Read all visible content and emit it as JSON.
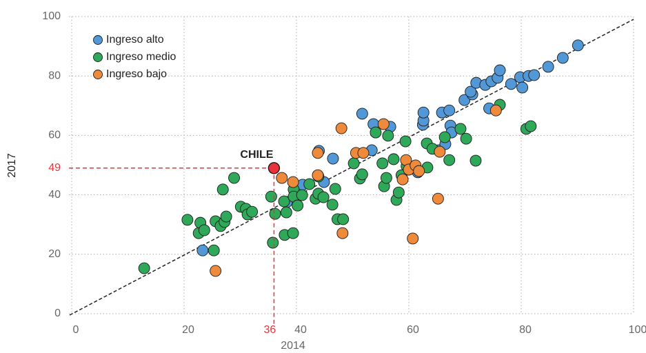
{
  "chart_data": {
    "type": "scatter",
    "xlabel": "2014",
    "ylabel": "2017",
    "xlim": [
      0,
      100
    ],
    "ylim": [
      0,
      100
    ],
    "xticks": [
      0,
      20,
      40,
      60,
      80,
      100
    ],
    "yticks": [
      0,
      20,
      40,
      60,
      80,
      100
    ],
    "grid": true,
    "legend": "upper left",
    "highlight": {
      "label": "CHILE",
      "x": 36,
      "y": 49,
      "color": "#e8333a"
    },
    "series": [
      {
        "name": "Ingreso alto",
        "color": "#5398d6",
        "x": [
          23.3,
          38.3,
          41.1,
          44.9,
          44.0,
          46.5,
          51.7,
          53.4,
          53.7,
          56.7,
          61.6,
          62.5,
          62.6,
          62.6,
          65.4,
          65.9,
          66.5,
          67.2,
          67.4,
          67.6,
          69.9,
          71.3,
          71.0,
          72.0,
          73.6,
          74.3,
          74.7,
          75.8,
          76.2,
          78.2,
          79.8,
          80.2,
          81.3,
          82.3,
          84.8,
          87.4,
          90.1
        ],
        "y": [
          21.3,
          37.6,
          43.4,
          44.3,
          54.8,
          52.2,
          67.3,
          55.0,
          63.8,
          62.9,
          47.6,
          63.6,
          65.0,
          67.7,
          55.0,
          67.7,
          57.1,
          68.4,
          63.3,
          61.0,
          71.9,
          73.8,
          74.7,
          77.7,
          77.0,
          69.1,
          78.2,
          79.4,
          81.9,
          77.3,
          79.6,
          76.1,
          80.0,
          80.3,
          83.1,
          86.1,
          90.3
        ]
      },
      {
        "name": "Ingreso medio",
        "color": "#30a85a",
        "x": [
          12.9,
          20.6,
          22.6,
          22.9,
          23.6,
          25.3,
          25.6,
          26.5,
          26.9,
          27.2,
          27.5,
          28.9,
          30.1,
          31.0,
          31.3,
          32.1,
          35.5,
          35.8,
          36.2,
          37.8,
          37.9,
          38.2,
          39.4,
          39.5,
          39.5,
          40.2,
          41.0,
          42.3,
          43.4,
          43.9,
          43.9,
          44.8,
          46.4,
          46.9,
          47.3,
          48.3,
          50.2,
          51.3,
          51.7,
          54.1,
          55.3,
          55.6,
          56.0,
          56.3,
          57.3,
          57.8,
          58.2,
          58.7,
          59.4,
          59.6,
          63.2,
          63.3,
          64.2,
          66.4,
          67.2,
          69.2,
          70.2,
          71.9,
          76.2,
          80.9,
          81.7
        ],
        "y": [
          15.3,
          31.6,
          27.1,
          30.6,
          28.1,
          21.3,
          31.1,
          29.5,
          41.8,
          30.9,
          32.7,
          45.7,
          36.0,
          35.3,
          33.4,
          34.3,
          39.4,
          23.9,
          33.6,
          37.8,
          26.5,
          34.1,
          27.1,
          41.8,
          39.4,
          36.4,
          39.9,
          43.6,
          38.7,
          46.2,
          40.4,
          39.2,
          36.7,
          42.0,
          31.8,
          31.8,
          50.6,
          45.5,
          46.9,
          61.0,
          50.6,
          42.9,
          45.7,
          59.9,
          52.0,
          38.3,
          40.8,
          46.6,
          58.0,
          49.7,
          57.3,
          49.2,
          55.5,
          59.4,
          51.7,
          62.2,
          58.9,
          51.5,
          70.3,
          62.2,
          63.1
        ]
      },
      {
        "name": "Ingreso bajo",
        "color": "#ee8a3b",
        "x": [
          25.6,
          37.4,
          39.4,
          43.8,
          43.8,
          48.0,
          48.2,
          50.6,
          51.9,
          55.5,
          58.9,
          59.5,
          60.0,
          60.7,
          61.2,
          61.8,
          65.2,
          65.5,
          75.5
        ],
        "y": [
          14.4,
          45.7,
          44.3,
          46.6,
          54.1,
          62.4,
          27.1,
          54.1,
          54.1,
          63.8,
          45.2,
          51.7,
          48.5,
          25.3,
          49.9,
          48.0,
          38.7,
          54.5,
          68.4
        ]
      }
    ]
  }
}
